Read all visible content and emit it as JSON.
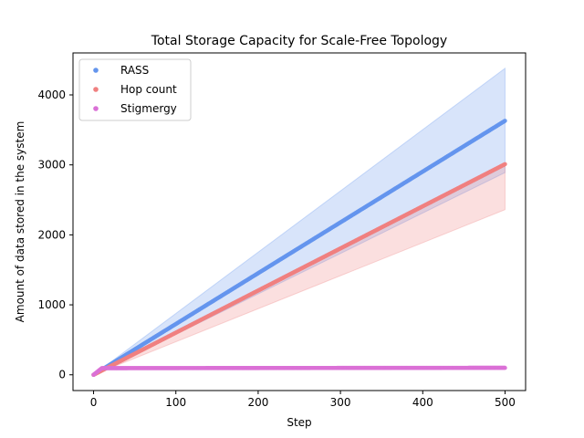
{
  "chart_data": {
    "type": "scatter",
    "title": "Total Storage Capacity for Scale-Free Topology",
    "xlabel": "Step",
    "ylabel": "Amount of data stored in the system",
    "xlim": [
      -25,
      525
    ],
    "ylim": [
      -225,
      4600
    ],
    "xticks": [
      0,
      100,
      200,
      300,
      400,
      500
    ],
    "yticks": [
      0,
      1000,
      2000,
      3000,
      4000
    ],
    "grid": false,
    "legend_position": "top-left",
    "series": [
      {
        "name": "RASS",
        "color": "#6495ED",
        "band_color": "#6495ED",
        "points": [
          [
            0,
            0
          ],
          [
            500,
            3630
          ]
        ],
        "band_upper": [
          [
            0,
            0
          ],
          [
            500,
            4380
          ]
        ],
        "band_lower": [
          [
            0,
            0
          ],
          [
            500,
            2890
          ]
        ]
      },
      {
        "name": "Hop count",
        "color": "#F08080",
        "band_color": "#F08080",
        "points": [
          [
            0,
            0
          ],
          [
            500,
            3010
          ]
        ],
        "band_upper": [
          [
            0,
            0
          ],
          [
            500,
            3000
          ]
        ],
        "band_lower": [
          [
            0,
            0
          ],
          [
            500,
            2360
          ]
        ]
      },
      {
        "name": "Stigmergy",
        "color": "#DA70D6",
        "points": [
          [
            0,
            0
          ],
          [
            10,
            95
          ],
          [
            500,
            100
          ]
        ]
      }
    ]
  }
}
